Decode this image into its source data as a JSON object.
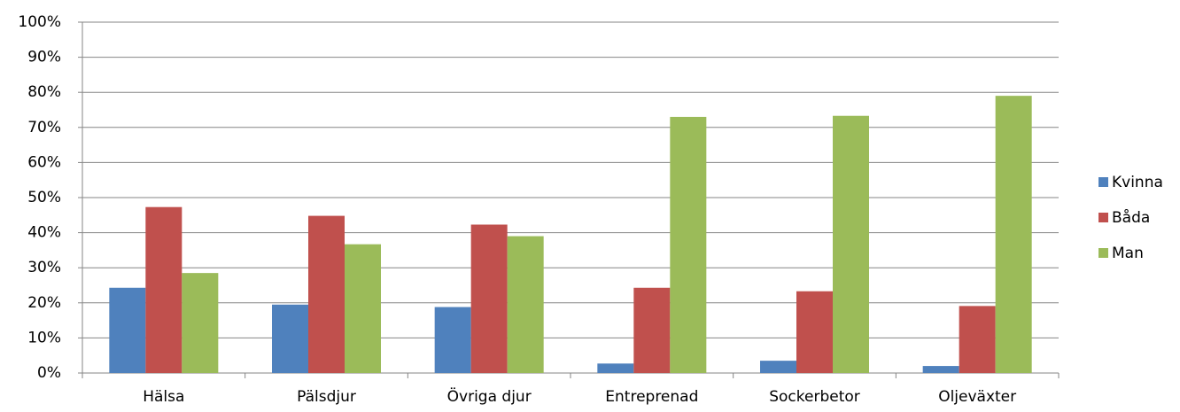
{
  "chart_data": {
    "type": "bar",
    "categories": [
      "Hälsa",
      "Pälsdjur",
      "Övriga djur",
      "Entreprenad",
      "Sockerbetor",
      "Oljeväxter"
    ],
    "series": [
      {
        "name": "Kvinna",
        "color": "#4f81bd",
        "values": [
          24.3,
          19.5,
          18.8,
          2.7,
          3.5,
          2.0
        ]
      },
      {
        "name": "Båda",
        "color": "#c0504d",
        "values": [
          47.3,
          44.8,
          42.3,
          24.3,
          23.3,
          19.1
        ]
      },
      {
        "name": "Man",
        "color": "#9bbb59",
        "values": [
          28.5,
          36.7,
          39.0,
          73.0,
          73.3,
          79.0
        ]
      }
    ],
    "ylim": [
      0,
      100
    ],
    "yticks": [
      {
        "value": 0,
        "label": "0%"
      },
      {
        "value": 10,
        "label": "10%"
      },
      {
        "value": 20,
        "label": "20%"
      },
      {
        "value": 30,
        "label": "30%"
      },
      {
        "value": 40,
        "label": "40%"
      },
      {
        "value": 50,
        "label": "50%"
      },
      {
        "value": 60,
        "label": "60%"
      },
      {
        "value": 70,
        "label": "70%"
      },
      {
        "value": 80,
        "label": "80%"
      },
      {
        "value": 90,
        "label": "90%"
      },
      {
        "value": 100,
        "label": "100%"
      }
    ],
    "grid": true,
    "legend": "right"
  }
}
